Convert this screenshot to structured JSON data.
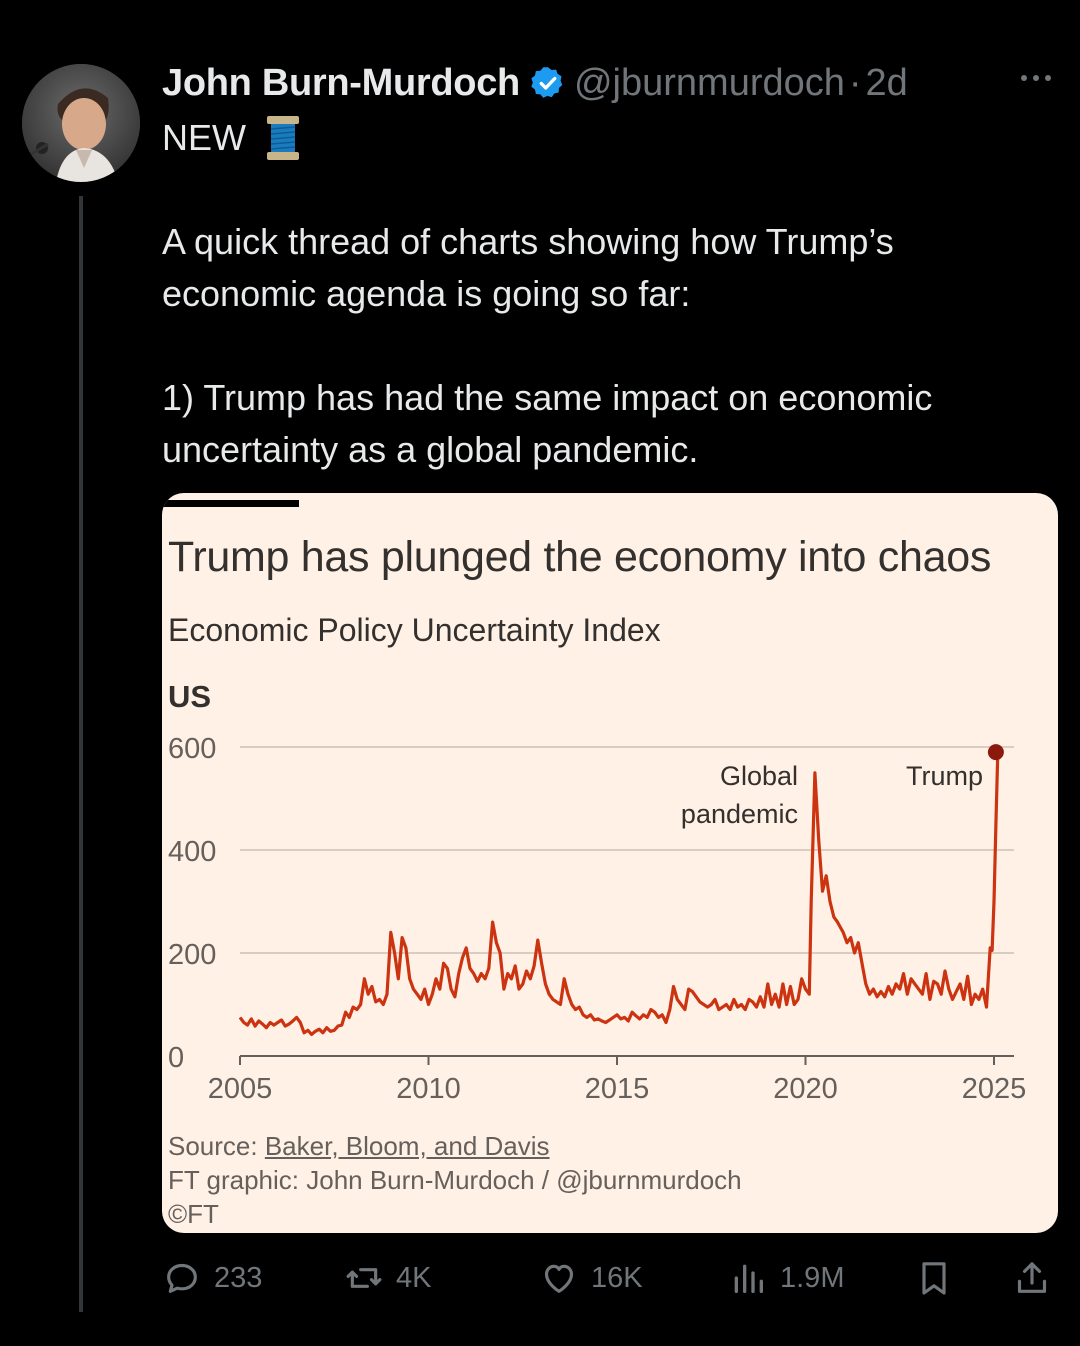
{
  "author": {
    "name": "John Burn-Murdoch",
    "handle": "@jburnmurdoch",
    "separator": "·",
    "time": "2d"
  },
  "tweet": {
    "line1": "NEW",
    "paragraph1": "A quick thread of charts showing how Trump’s economic agenda is going so far:",
    "paragraph2": "1) Trump has had the same impact on economic uncertainty as a global pandemic."
  },
  "chart": {
    "title": "Trump has plunged the economy into chaos",
    "subtitle": "Economic Policy Uncertainty Index",
    "region": "US",
    "source_label": "Source: ",
    "source_link": "Baker, Bloom, and Davis",
    "credit": "FT graphic: John Burn-Murdoch / @jburnmurdoch",
    "copyright": "©FT"
  },
  "chart_data": {
    "type": "line",
    "title": "Trump has plunged the economy into chaos",
    "subtitle": "Economic Policy Uncertainty Index",
    "panel": "US",
    "xlabel": "",
    "ylabel": "",
    "xlim": [
      2005,
      2025.1
    ],
    "ylim": [
      0,
      600
    ],
    "yticks": [
      0,
      200,
      400,
      600
    ],
    "xticks": [
      2005,
      2010,
      2015,
      2020,
      2025
    ],
    "color": "#cc3311",
    "annotations": [
      {
        "text": [
          "Global",
          "pandemic"
        ],
        "x": 2020.3,
        "y": 540
      },
      {
        "text": [
          "Trump"
        ],
        "x": 2025.1,
        "y": 590
      }
    ],
    "series": [
      {
        "name": "US EPU index",
        "points": [
          [
            2005.0,
            75
          ],
          [
            2005.1,
            65
          ],
          [
            2005.2,
            60
          ],
          [
            2005.3,
            72
          ],
          [
            2005.4,
            58
          ],
          [
            2005.5,
            68
          ],
          [
            2005.6,
            62
          ],
          [
            2005.7,
            55
          ],
          [
            2005.8,
            65
          ],
          [
            2005.9,
            60
          ],
          [
            2006.0,
            65
          ],
          [
            2006.1,
            70
          ],
          [
            2006.2,
            58
          ],
          [
            2006.3,
            62
          ],
          [
            2006.4,
            68
          ],
          [
            2006.5,
            75
          ],
          [
            2006.6,
            65
          ],
          [
            2006.7,
            45
          ],
          [
            2006.8,
            50
          ],
          [
            2006.9,
            42
          ],
          [
            2007.0,
            48
          ],
          [
            2007.1,
            52
          ],
          [
            2007.2,
            45
          ],
          [
            2007.3,
            55
          ],
          [
            2007.4,
            48
          ],
          [
            2007.5,
            50
          ],
          [
            2007.6,
            58
          ],
          [
            2007.7,
            60
          ],
          [
            2007.8,
            85
          ],
          [
            2007.9,
            75
          ],
          [
            2008.0,
            95
          ],
          [
            2008.1,
            90
          ],
          [
            2008.2,
            100
          ],
          [
            2008.3,
            150
          ],
          [
            2008.4,
            120
          ],
          [
            2008.5,
            135
          ],
          [
            2008.6,
            105
          ],
          [
            2008.7,
            110
          ],
          [
            2008.8,
            100
          ],
          [
            2008.9,
            120
          ],
          [
            2009.0,
            240
          ],
          [
            2009.1,
            200
          ],
          [
            2009.2,
            150
          ],
          [
            2009.3,
            230
          ],
          [
            2009.4,
            210
          ],
          [
            2009.5,
            150
          ],
          [
            2009.6,
            130
          ],
          [
            2009.7,
            120
          ],
          [
            2009.8,
            110
          ],
          [
            2009.9,
            130
          ],
          [
            2010.0,
            100
          ],
          [
            2010.1,
            120
          ],
          [
            2010.2,
            150
          ],
          [
            2010.3,
            130
          ],
          [
            2010.4,
            180
          ],
          [
            2010.5,
            170
          ],
          [
            2010.6,
            130
          ],
          [
            2010.7,
            115
          ],
          [
            2010.8,
            160
          ],
          [
            2010.9,
            190
          ],
          [
            2011.0,
            210
          ],
          [
            2011.1,
            170
          ],
          [
            2011.2,
            160
          ],
          [
            2011.3,
            145
          ],
          [
            2011.4,
            160
          ],
          [
            2011.5,
            150
          ],
          [
            2011.6,
            170
          ],
          [
            2011.7,
            260
          ],
          [
            2011.8,
            220
          ],
          [
            2011.9,
            200
          ],
          [
            2012.0,
            130
          ],
          [
            2012.1,
            160
          ],
          [
            2012.2,
            150
          ],
          [
            2012.3,
            175
          ],
          [
            2012.4,
            130
          ],
          [
            2012.5,
            140
          ],
          [
            2012.6,
            165
          ],
          [
            2012.7,
            150
          ],
          [
            2012.8,
            175
          ],
          [
            2012.9,
            225
          ],
          [
            2013.0,
            180
          ],
          [
            2013.1,
            140
          ],
          [
            2013.2,
            120
          ],
          [
            2013.3,
            110
          ],
          [
            2013.4,
            105
          ],
          [
            2013.5,
            100
          ],
          [
            2013.6,
            150
          ],
          [
            2013.7,
            120
          ],
          [
            2013.8,
            100
          ],
          [
            2013.9,
            90
          ],
          [
            2014.0,
            95
          ],
          [
            2014.1,
            80
          ],
          [
            2014.2,
            75
          ],
          [
            2014.3,
            80
          ],
          [
            2014.4,
            70
          ],
          [
            2014.5,
            72
          ],
          [
            2014.6,
            68
          ],
          [
            2014.7,
            65
          ],
          [
            2014.8,
            70
          ],
          [
            2014.9,
            75
          ],
          [
            2015.0,
            80
          ],
          [
            2015.1,
            72
          ],
          [
            2015.2,
            75
          ],
          [
            2015.3,
            68
          ],
          [
            2015.4,
            85
          ],
          [
            2015.5,
            78
          ],
          [
            2015.6,
            72
          ],
          [
            2015.7,
            80
          ],
          [
            2015.8,
            75
          ],
          [
            2015.9,
            90
          ],
          [
            2016.0,
            85
          ],
          [
            2016.1,
            75
          ],
          [
            2016.2,
            80
          ],
          [
            2016.3,
            65
          ],
          [
            2016.4,
            90
          ],
          [
            2016.5,
            135
          ],
          [
            2016.6,
            110
          ],
          [
            2016.7,
            100
          ],
          [
            2016.8,
            90
          ],
          [
            2016.9,
            130
          ],
          [
            2017.0,
            125
          ],
          [
            2017.1,
            115
          ],
          [
            2017.2,
            105
          ],
          [
            2017.3,
            100
          ],
          [
            2017.4,
            95
          ],
          [
            2017.5,
            100
          ],
          [
            2017.6,
            110
          ],
          [
            2017.7,
            90
          ],
          [
            2017.8,
            95
          ],
          [
            2017.9,
            100
          ],
          [
            2018.0,
            90
          ],
          [
            2018.1,
            110
          ],
          [
            2018.2,
            95
          ],
          [
            2018.3,
            100
          ],
          [
            2018.4,
            90
          ],
          [
            2018.5,
            110
          ],
          [
            2018.6,
            105
          ],
          [
            2018.7,
            95
          ],
          [
            2018.8,
            115
          ],
          [
            2018.9,
            95
          ],
          [
            2019.0,
            140
          ],
          [
            2019.1,
            100
          ],
          [
            2019.2,
            120
          ],
          [
            2019.3,
            95
          ],
          [
            2019.4,
            140
          ],
          [
            2019.5,
            100
          ],
          [
            2019.6,
            135
          ],
          [
            2019.7,
            100
          ],
          [
            2019.8,
            110
          ],
          [
            2019.9,
            150
          ],
          [
            2020.0,
            130
          ],
          [
            2020.1,
            120
          ],
          [
            2020.15,
            300
          ],
          [
            2020.25,
            550
          ],
          [
            2020.35,
            420
          ],
          [
            2020.45,
            320
          ],
          [
            2020.55,
            350
          ],
          [
            2020.65,
            300
          ],
          [
            2020.75,
            270
          ],
          [
            2020.85,
            260
          ],
          [
            2021.0,
            240
          ],
          [
            2021.1,
            220
          ],
          [
            2021.2,
            230
          ],
          [
            2021.3,
            200
          ],
          [
            2021.4,
            220
          ],
          [
            2021.5,
            180
          ],
          [
            2021.6,
            140
          ],
          [
            2021.7,
            120
          ],
          [
            2021.8,
            130
          ],
          [
            2021.9,
            115
          ],
          [
            2022.0,
            125
          ],
          [
            2022.1,
            115
          ],
          [
            2022.2,
            135
          ],
          [
            2022.3,
            120
          ],
          [
            2022.4,
            140
          ],
          [
            2022.5,
            130
          ],
          [
            2022.6,
            160
          ],
          [
            2022.7,
            120
          ],
          [
            2022.8,
            150
          ],
          [
            2022.9,
            140
          ],
          [
            2023.0,
            130
          ],
          [
            2023.1,
            120
          ],
          [
            2023.2,
            160
          ],
          [
            2023.3,
            110
          ],
          [
            2023.4,
            145
          ],
          [
            2023.5,
            140
          ],
          [
            2023.6,
            120
          ],
          [
            2023.7,
            165
          ],
          [
            2023.8,
            130
          ],
          [
            2023.9,
            110
          ],
          [
            2024.0,
            125
          ],
          [
            2024.1,
            140
          ],
          [
            2024.2,
            110
          ],
          [
            2024.3,
            155
          ],
          [
            2024.4,
            100
          ],
          [
            2024.5,
            120
          ],
          [
            2024.6,
            110
          ],
          [
            2024.7,
            130
          ],
          [
            2024.8,
            95
          ],
          [
            2024.9,
            210
          ],
          [
            2024.95,
            205
          ],
          [
            2025.0,
            300
          ],
          [
            2025.05,
            450
          ],
          [
            2025.1,
            590
          ]
        ]
      }
    ]
  },
  "actions": {
    "replies": "233",
    "reposts": "4K",
    "likes": "16K",
    "views": "1.9M"
  }
}
